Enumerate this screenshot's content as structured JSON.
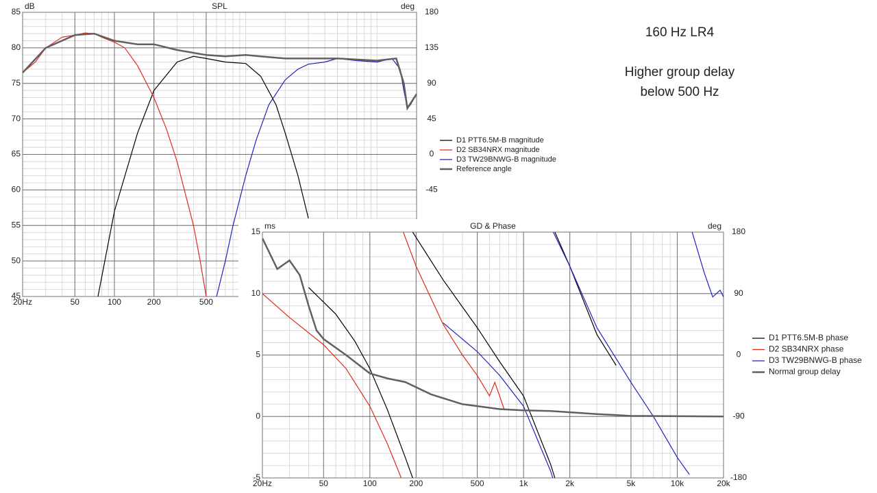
{
  "annotations": [
    "160 Hz LR4",
    "Higher group delay",
    "below 500 Hz"
  ],
  "chart_data": [
    {
      "type": "line",
      "title": "SPL",
      "y_label": "dB",
      "y2_label": "deg",
      "xscale": "log",
      "grid": true,
      "minor_grid": true,
      "xlim": [
        20,
        20000
      ],
      "ylim": [
        45,
        85
      ],
      "y2lim": [
        -180,
        180
      ],
      "xticks": [
        {
          "value": 20,
          "label": "20Hz"
        },
        50,
        100,
        200,
        500
      ],
      "yticks": [
        45,
        50,
        55,
        60,
        65,
        70,
        75,
        80,
        85
      ],
      "y2ticks": [
        -45,
        0,
        45,
        90,
        135,
        180
      ],
      "series": [
        {
          "name": "D1 PTT6.5M-B magnitude",
          "color": "#000000",
          "x": [
            75,
            100,
            150,
            200,
            300,
            400,
            500,
            700,
            1000,
            1300,
            1700,
            2000,
            2500,
            3000
          ],
          "values": [
            45,
            57,
            68,
            74,
            78,
            78.8,
            78.5,
            78,
            77.8,
            76,
            72,
            68,
            62,
            56
          ]
        },
        {
          "name": "D2 SB34NRX magnitude",
          "color": "#e02a1a",
          "x": [
            20,
            25,
            30,
            40,
            50,
            60,
            70,
            80,
            100,
            120,
            150,
            200,
            250,
            300,
            400,
            450,
            500
          ],
          "values": [
            76.5,
            78,
            80,
            81.5,
            81.8,
            82.1,
            82,
            81.5,
            80.8,
            80,
            77.5,
            73,
            68.5,
            64,
            55,
            50,
            45
          ]
        },
        {
          "name": "D3 TW29BNWG-B magnitude",
          "color": "#1f22c0",
          "x": [
            600,
            700,
            800,
            1000,
            1200,
            1500,
            2000,
            2500,
            3000,
            4000,
            5000,
            7000,
            10000,
            13000,
            15000,
            16000,
            17000,
            18000,
            20000
          ],
          "values": [
            45,
            50,
            55,
            62,
            67,
            72,
            75.5,
            77,
            77.7,
            78,
            78.5,
            78.2,
            78,
            78.5,
            77,
            74,
            71.5,
            72,
            73.5
          ]
        },
        {
          "name": "Reference angle",
          "color": "#606060",
          "width": 2.5,
          "x": [
            20,
            30,
            50,
            70,
            100,
            150,
            200,
            300,
            500,
            700,
            1000,
            1500,
            2000,
            3000,
            5000,
            10000,
            14000,
            16000,
            17000,
            20000
          ],
          "values": [
            76.5,
            80,
            81.8,
            82,
            81,
            80.5,
            80.5,
            79.7,
            79,
            78.8,
            79,
            78.7,
            78.5,
            78.5,
            78.5,
            78.2,
            78.5,
            75,
            71.5,
            73.5
          ]
        }
      ]
    },
    {
      "type": "line",
      "title": "GD & Phase",
      "y_label": "ms",
      "y2_label": "deg",
      "xscale": "log",
      "grid": true,
      "minor_grid": true,
      "xlim": [
        20,
        20000
      ],
      "ylim": [
        -5,
        15
      ],
      "y2lim": [
        -180,
        180
      ],
      "xticks": [
        {
          "value": 20,
          "label": "20Hz"
        },
        50,
        100,
        200,
        500,
        {
          "value": 1000,
          "label": "1k"
        },
        {
          "value": 2000,
          "label": "2k"
        },
        {
          "value": 5000,
          "label": "5k"
        },
        {
          "value": 10000,
          "label": "10k"
        },
        {
          "value": 20000,
          "label": "20k"
        }
      ],
      "yticks": [
        -5,
        0,
        5,
        10,
        15
      ],
      "y2ticks": [
        -180,
        -90,
        0,
        90,
        180
      ],
      "series": [
        {
          "name": "D1 PTT6.5M-B phase",
          "color": "#000000",
          "axis": "y2",
          "x": [
            40,
            60,
            80,
            100,
            130,
            170,
            190,
            null,
            190,
            300,
            500,
            700,
            1000,
            1500,
            1600,
            null,
            1600,
            2000,
            3000,
            4000
          ],
          "values": [
            99,
            60,
            20,
            -20,
            -80,
            -150,
            -180,
            null,
            180,
            110,
            40,
            -10,
            -60,
            -160,
            -180,
            null,
            180,
            130,
            30,
            -15
          ]
        },
        {
          "name": "D2 SB34NRX phase",
          "color": "#e02a1a",
          "axis": "y2",
          "x": [
            20,
            30,
            50,
            70,
            100,
            130,
            160,
            null,
            165,
            200,
            300,
            400,
            500,
            600,
            650,
            750
          ],
          "values": [
            90,
            55,
            15,
            -20,
            -75,
            -130,
            -180,
            null,
            180,
            130,
            45,
            0,
            -30,
            -60,
            -40,
            -80
          ]
        },
        {
          "name": "D3 TW29BNWG-B phase",
          "color": "#1f22c0",
          "axis": "y2",
          "x": [
            300,
            500,
            700,
            1000,
            1500,
            1550,
            null,
            1560,
            2000,
            3000,
            5000,
            7000,
            10000,
            12000,
            null,
            12500,
            15000,
            17000,
            19000,
            20000
          ],
          "values": [
            47,
            5,
            -30,
            -75,
            -170,
            -180,
            null,
            180,
            130,
            40,
            -40,
            -90,
            -150,
            -175,
            null,
            180,
            120,
            85,
            95,
            85
          ]
        },
        {
          "name": "Normal group delay",
          "color": "#606060",
          "width": 2.5,
          "x": [
            20,
            25,
            30,
            35,
            40,
            45,
            50,
            70,
            100,
            130,
            170,
            250,
            400,
            700,
            1000,
            1500,
            3000,
            5000,
            20000
          ],
          "values": [
            14.5,
            12,
            12.7,
            11.5,
            9,
            7,
            6.3,
            5,
            3.5,
            3.1,
            2.8,
            1.8,
            1,
            0.6,
            0.5,
            0.45,
            0.2,
            0.05,
            0
          ]
        }
      ]
    }
  ]
}
